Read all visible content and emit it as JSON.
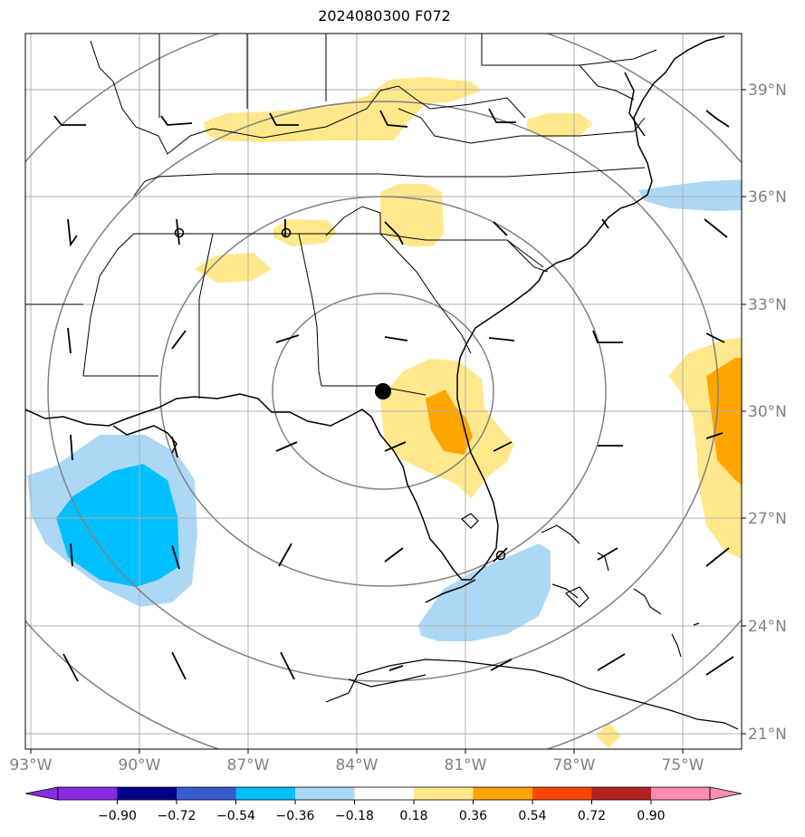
{
  "title": "2024080300 F072",
  "lat_labels": [
    "39°N",
    "36°N",
    "33°N",
    "30°N",
    "27°N",
    "24°N",
    "21°N"
  ],
  "lon_labels": [
    "93°W",
    "90°W",
    "87°W",
    "84°W",
    "81°W",
    "78°W",
    "75°W"
  ],
  "colorbar": {
    "ticks": [
      "−0.90",
      "−0.72",
      "−0.54",
      "−0.36",
      "−0.18",
      "0.18",
      "0.36",
      "0.54",
      "0.72",
      "0.90"
    ],
    "colors": [
      "#8a2be2",
      "#00008b",
      "#3b5bd0",
      "#00bfff",
      "#add8f5",
      "#ffffff",
      "#ffe88c",
      "#ffa500",
      "#ff4500",
      "#b22222",
      "#ff8cb4"
    ]
  },
  "colors": {
    "grid": "#b0b0b0",
    "ring": "#808080",
    "light_yellow": "#ffe88c",
    "orange": "#ffa500",
    "light_blue": "#add8f5",
    "deep_sky_blue": "#00bfff"
  },
  "center_marker": "filled-circle"
}
